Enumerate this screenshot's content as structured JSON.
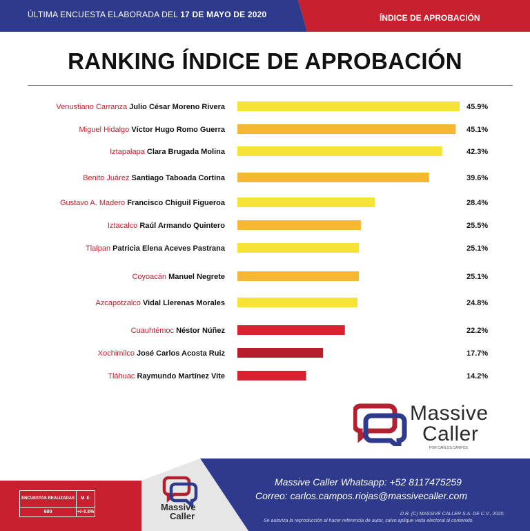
{
  "header": {
    "survey_text": "ÚLTIMA ENCUESTA ELABORADA DEL",
    "survey_date": "17 DE MAYO DE 2020",
    "section_label": "ÍNDICE DE APROBACIÓN"
  },
  "title": "RANKING ÍNDICE DE APROBACIÓN",
  "colors": {
    "navy": "#2e3a8c",
    "red": "#c8202f",
    "bar_yellow": "#f7e236",
    "bar_orange": "#f6b733",
    "bar_red": "#d9212f",
    "bar_darkred": "#b81d2c",
    "place_red": "#c0202e"
  },
  "chart_data": {
    "type": "bar",
    "orientation": "horizontal",
    "title": "RANKING ÍNDICE DE APROBACIÓN",
    "xlim": [
      0,
      45.9
    ],
    "grid": false,
    "rows": [
      {
        "place": "Venustiano Carranza",
        "name": "Julio César Moreno Rivera",
        "value": 45.9,
        "label": "45.9%",
        "color": "#f7e236"
      },
      {
        "place": "Miguel Hidalgo",
        "name": "Víctor Hugo Romo Guerra",
        "value": 45.1,
        "label": "45.1%",
        "color": "#f6b733"
      },
      {
        "place": "Iztapalapa",
        "name": "Clara Brugada Molina",
        "value": 42.3,
        "label": "42.3%",
        "color": "#f7e236"
      },
      {
        "place": "Benito Juárez",
        "name": "Santiago Taboada Cortina",
        "value": 39.6,
        "label": "39.6%",
        "color": "#f6b733"
      },
      {
        "place": "Gustavo A. Madero",
        "name": "Francisco Chiguil Figueroa",
        "value": 28.4,
        "label": "28.4%",
        "color": "#f7e236"
      },
      {
        "place": "Iztacalco",
        "name": "Raúl Armando Quintero",
        "value": 25.5,
        "label": "25.5%",
        "color": "#f6b733"
      },
      {
        "place": "Tlalpan",
        "name": "Patricia Elena Aceves Pastrana",
        "value": 25.1,
        "label": "25.1%",
        "color": "#f7e236"
      },
      {
        "place": "Coyoacán",
        "name": "Manuel Negrete",
        "value": 25.1,
        "label": "25.1%",
        "color": "#f6b733"
      },
      {
        "place": "Azcapotzalco",
        "name": "Vidal Llerenas Morales",
        "value": 24.8,
        "label": "24.8%",
        "color": "#f7e236"
      },
      {
        "place": "Cuauhtémoc",
        "name": "Néstor Núñez",
        "value": 22.2,
        "label": "22.2%",
        "color": "#d9212f"
      },
      {
        "place": "Xochimilco",
        "name": "José Carlos Acosta Ruiz",
        "value": 17.7,
        "label": "17.7%",
        "color": "#b81d2c"
      },
      {
        "place": "Tláhuac",
        "name": "Raymundo Martínez Vite",
        "value": 14.2,
        "label": "14.2%",
        "color": "#d9212f"
      }
    ]
  },
  "logo": {
    "line1": "Massive",
    "line2": "Caller",
    "tagline": "POR CARLOS CAMPOS"
  },
  "footer": {
    "stats_header_1": "ENCUESTAS REALIZADAS",
    "stats_header_2": "M. E.",
    "stats_value_1": "600",
    "stats_value_2": "+/-4.3%",
    "logo_line1": "Massive",
    "logo_line2": "Caller",
    "contact_whatsapp": "Massive Caller Whatsapp: +52 8117475259",
    "contact_email": "Correo: carlos.campos.riojas@massivecaller.com",
    "copyright": "D.R. (C) MASSIVE CALLER S.A. DE C.V., 2020.",
    "disclaimer": "Se autoriza la reproducción al hacer referencia de autor, salvo aplique veda electoral al contenido."
  }
}
